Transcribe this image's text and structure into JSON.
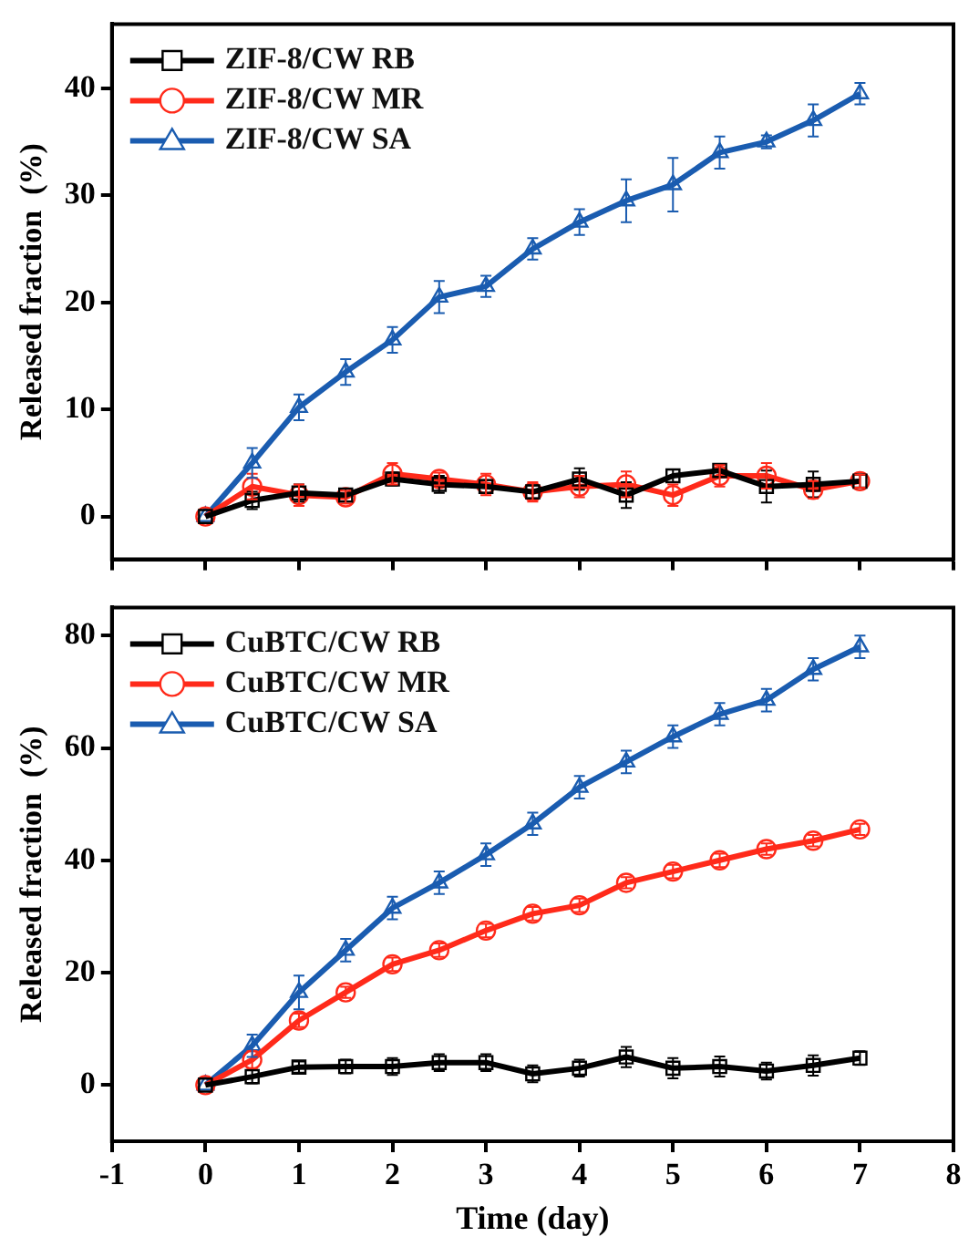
{
  "chart_data": [
    {
      "type": "line",
      "ylabel": "Released fraction  (%)",
      "x": [
        0,
        0.5,
        1,
        1.5,
        2,
        2.5,
        3,
        3.5,
        4,
        4.5,
        5,
        5.5,
        6,
        6.5,
        7
      ],
      "xlim": [
        -1,
        8
      ],
      "xticks": [
        -1,
        0,
        1,
        2,
        3,
        4,
        5,
        6,
        7,
        8
      ],
      "ylim": [
        -4,
        46
      ],
      "yticks": [
        0,
        10,
        20,
        30,
        40
      ],
      "tick_labels": "y",
      "grid": false,
      "legend": "top left",
      "line_style": "solid",
      "series": [
        {
          "name": "ZIF-8/CW RB",
          "color": "#000000",
          "marker": "square",
          "values": [
            0,
            1.5,
            2.2,
            2,
            3.5,
            3,
            2.8,
            2.3,
            3.5,
            2,
            3.8,
            4.3,
            2.8,
            3,
            3.3
          ],
          "errors": [
            null,
            0.8,
            0.8,
            0.6,
            0.6,
            0.8,
            0.6,
            0.6,
            1,
            1.2,
            0.6,
            0.6,
            1.5,
            1.2,
            0.6
          ]
        },
        {
          "name": "ZIF-8/CW MR",
          "color": "#ff2a1a",
          "marker": "circle",
          "values": [
            0,
            2.8,
            2,
            1.8,
            4,
            3.5,
            3,
            2.3,
            2.8,
            3,
            2,
            3.8,
            3.8,
            2.5,
            3.3
          ],
          "errors": [
            null,
            1.2,
            1,
            0.6,
            1,
            0.6,
            1,
            0.9,
            1,
            1.2,
            1,
            1,
            1.2,
            0.8,
            0.6
          ]
        },
        {
          "name": "ZIF-8/CW SA",
          "color": "#1a5cb0",
          "marker": "triangle",
          "values": [
            0,
            5,
            10.2,
            13.5,
            16.5,
            20.5,
            21.5,
            25,
            27.5,
            29.5,
            31,
            34,
            35,
            37,
            39.5
          ],
          "errors": [
            null,
            1.4,
            1.2,
            1.2,
            1.2,
            1.5,
            1,
            1,
            1.2,
            2,
            2.5,
            1.5,
            0.6,
            1.5,
            1
          ]
        }
      ]
    },
    {
      "type": "line",
      "xlabel": "Time (day)",
      "ylabel": "Released fraction  (%)",
      "x": [
        0,
        0.5,
        1,
        1.5,
        2,
        2.5,
        3,
        3.5,
        4,
        4.5,
        5,
        5.5,
        6,
        6.5,
        7
      ],
      "xlim": [
        -1,
        8
      ],
      "xticks": [
        -1,
        0,
        1,
        2,
        3,
        4,
        5,
        6,
        7,
        8
      ],
      "ylim": [
        -10,
        85
      ],
      "yticks": [
        0,
        20,
        40,
        60,
        80
      ],
      "grid": false,
      "legend": "top left",
      "line_style": "solid",
      "series": [
        {
          "name": "CuBTC/CW RB",
          "color": "#000000",
          "marker": "square",
          "values": [
            0,
            1.5,
            3.2,
            3.3,
            3.3,
            4,
            4,
            2,
            3,
            5,
            3,
            3.3,
            2.5,
            3.5,
            4.8
          ],
          "errors": [
            null,
            1.2,
            1,
            1.2,
            1.5,
            1.5,
            1.5,
            1.5,
            1.5,
            1.8,
            1.8,
            1.8,
            1.5,
            1.8,
            1.2
          ]
        },
        {
          "name": "CuBTC/CW MR",
          "color": "#ff2a1a",
          "marker": "circle",
          "values": [
            0,
            4.5,
            11.5,
            16.5,
            21.5,
            24,
            27.5,
            30.5,
            32,
            36,
            38,
            40,
            42,
            43.5,
            45.5
          ],
          "errors": [
            null,
            1.5,
            1.2,
            1,
            1.2,
            1.2,
            1.2,
            1.2,
            1.2,
            1,
            1.2,
            1.2,
            1,
            1,
            1
          ]
        },
        {
          "name": "CuBTC/CW SA",
          "color": "#1a5cb0",
          "marker": "triangle",
          "values": [
            0,
            7,
            16.5,
            24,
            31.5,
            36,
            41,
            46.5,
            53,
            57.5,
            62,
            66,
            68.5,
            74,
            78
          ],
          "errors": [
            null,
            2,
            3,
            2,
            2,
            2,
            2,
            2,
            2,
            2,
            2,
            2,
            2,
            2,
            2
          ]
        }
      ]
    }
  ]
}
